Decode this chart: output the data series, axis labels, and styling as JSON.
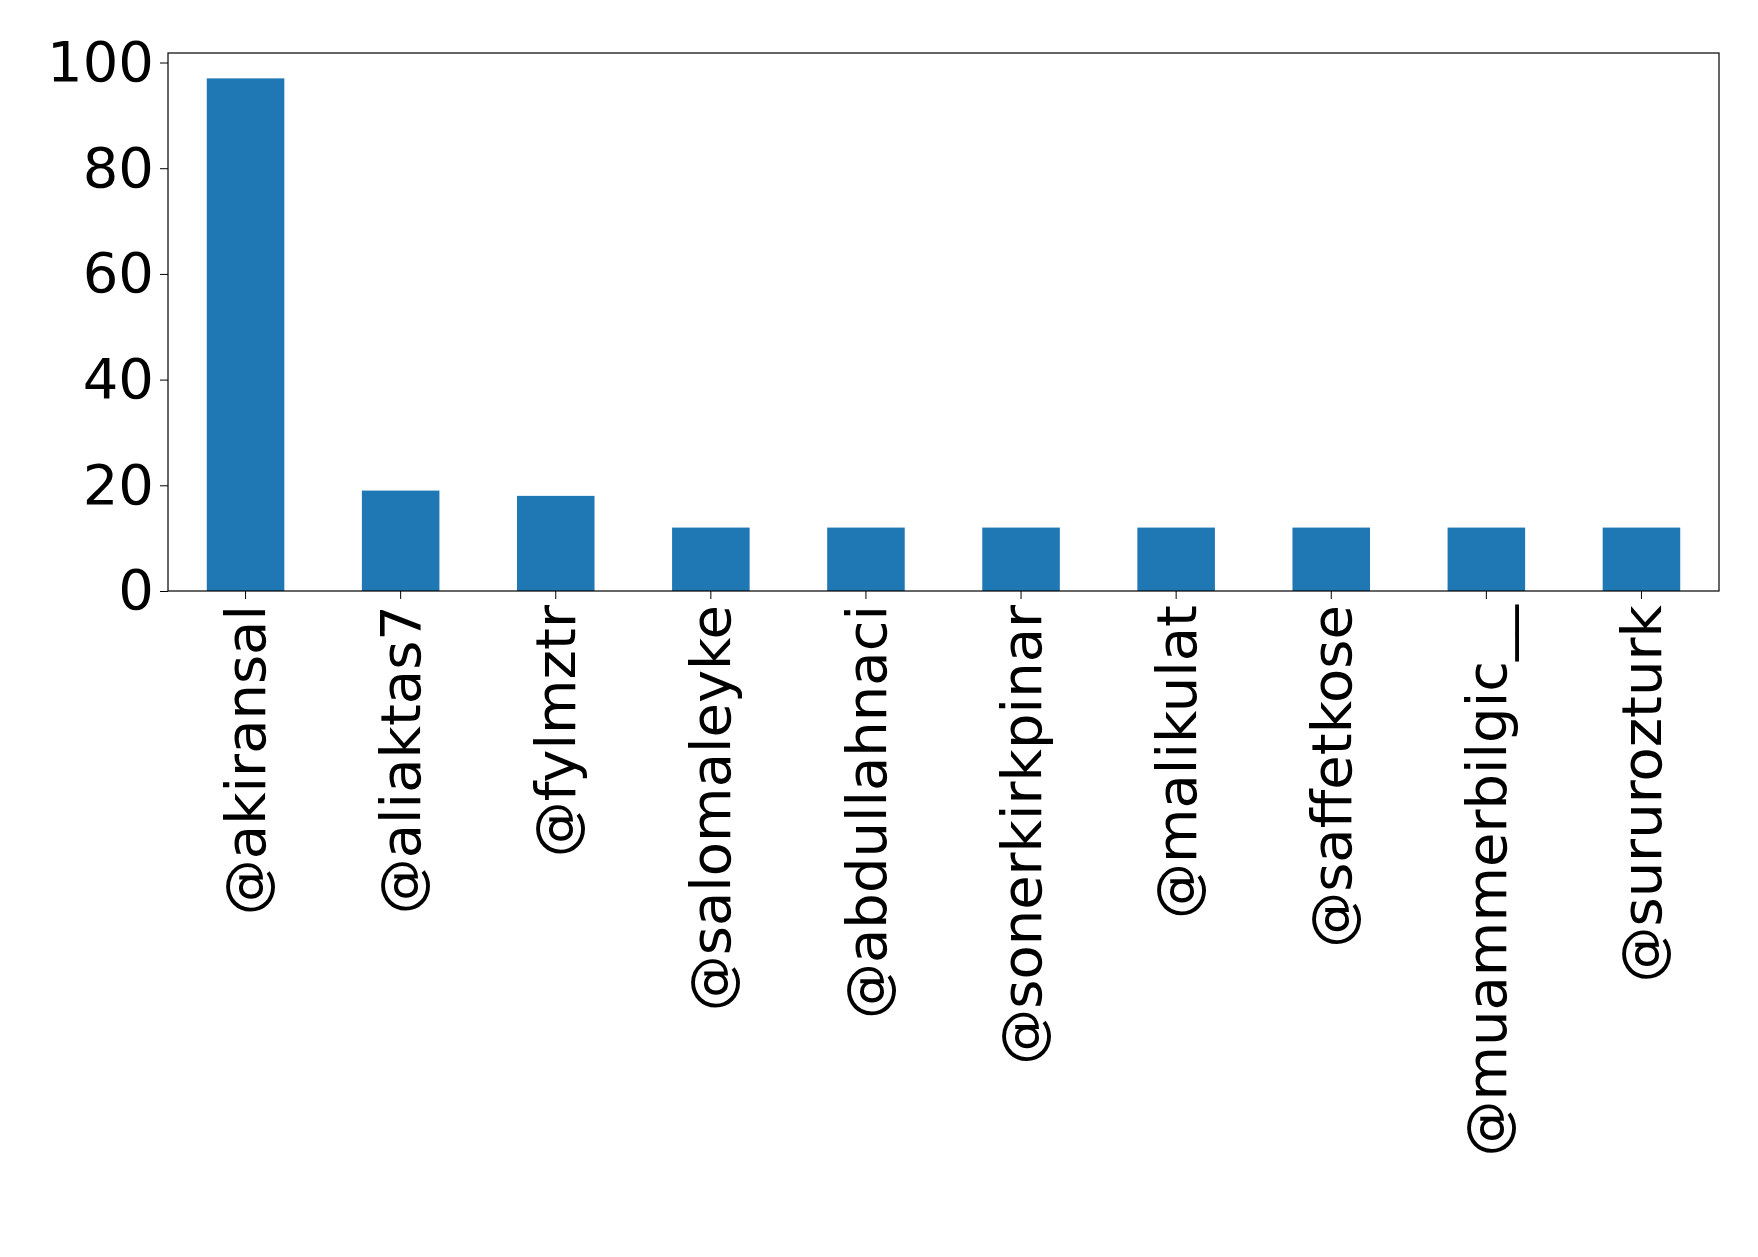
{
  "chart_data": {
    "type": "bar",
    "categories": [
      "@akiransal",
      "@aliaktas7",
      "@fylmztr",
      "@salomaleyke",
      "@abdullahnaci",
      "@sonerkirkpinar",
      "@malikulat",
      "@saffetkose",
      "@muammerbilgic__",
      "@sururozturk"
    ],
    "values": [
      97,
      19,
      18,
      12,
      12,
      12,
      12,
      12,
      12,
      12
    ],
    "color": "#1f77b4",
    "ylim": [
      0,
      101.8
    ],
    "yticks": [
      0,
      20,
      40,
      60,
      80,
      100
    ],
    "grid": false
  }
}
